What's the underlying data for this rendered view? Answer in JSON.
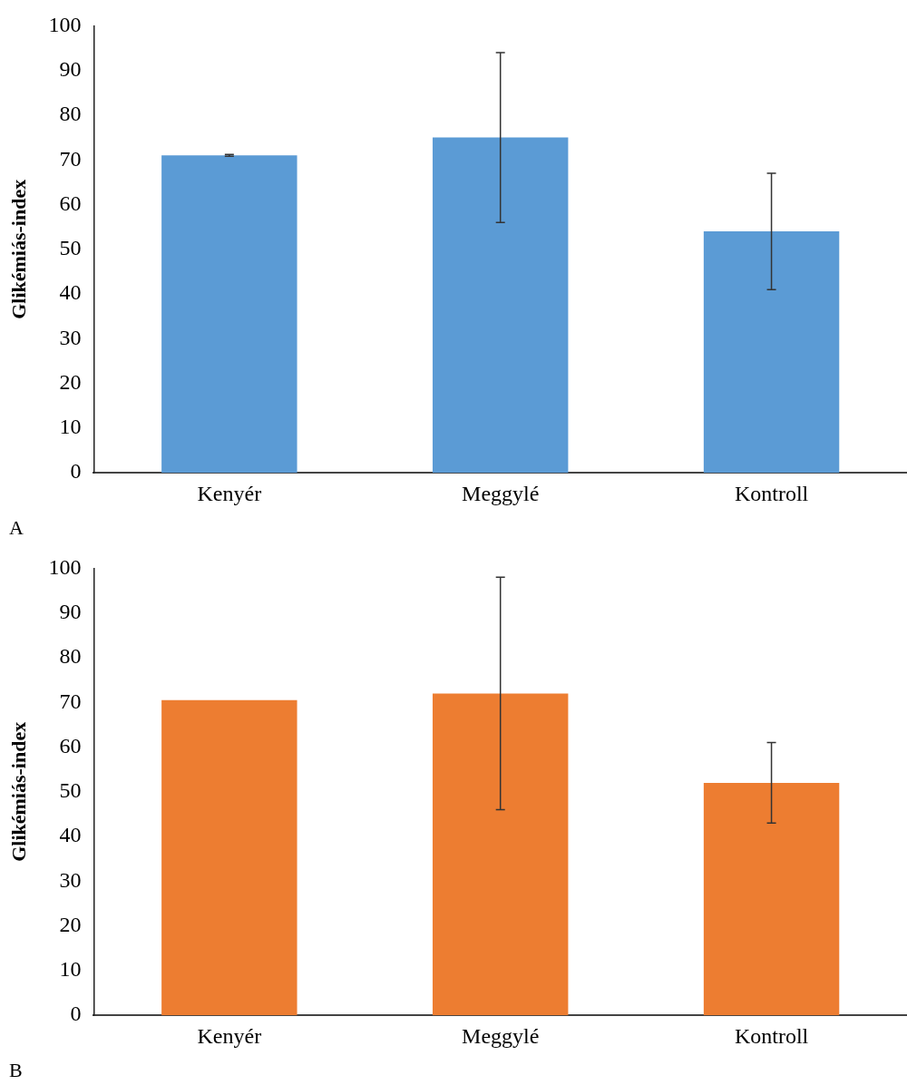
{
  "chart_data": [
    {
      "type": "bar",
      "ylabel": "Glikémiás-index",
      "categories": [
        "Kenyér",
        "Meggylé",
        "Kontroll"
      ],
      "values": [
        71,
        75,
        54
      ],
      "errors": [
        0.2,
        19,
        13
      ],
      "color": "#5b9bd5",
      "ylim": [
        0,
        100
      ],
      "yticks": [
        0,
        10,
        20,
        30,
        40,
        50,
        60,
        70,
        80,
        90,
        100
      ],
      "grid": false,
      "legend": false,
      "annotations": [
        "A"
      ]
    },
    {
      "type": "bar",
      "ylabel": "Glikémiás-index",
      "categories": [
        "Kenyér",
        "Meggylé",
        "Kontroll"
      ],
      "values": [
        70.5,
        72,
        52
      ],
      "errors": [
        null,
        26,
        9
      ],
      "color": "#ed7d31",
      "ylim": [
        0,
        100
      ],
      "yticks": [
        0,
        10,
        20,
        30,
        40,
        50,
        60,
        70,
        80,
        90,
        100
      ],
      "grid": false,
      "legend": false,
      "annotations": [
        "B"
      ]
    }
  ]
}
